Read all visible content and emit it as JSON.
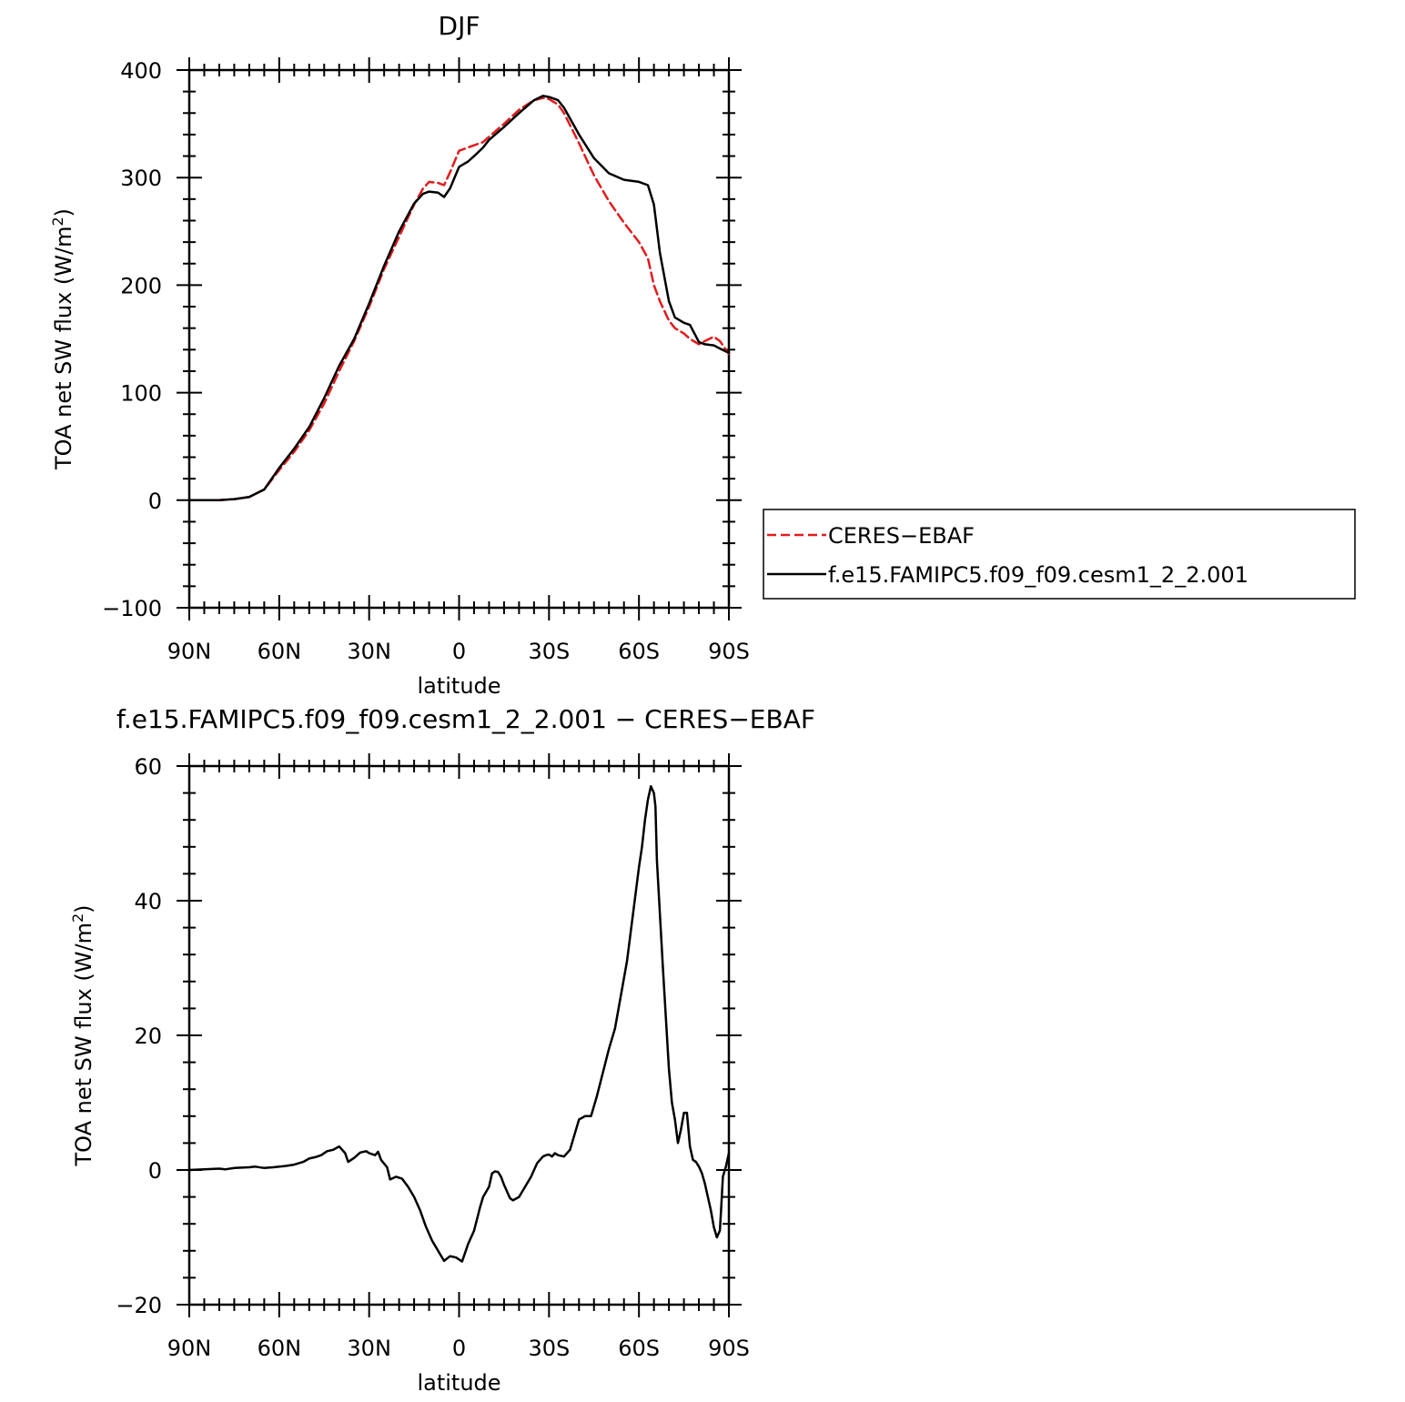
{
  "chart_data": [
    {
      "type": "line",
      "title": "DJF",
      "xlabel": "latitude",
      "ylabel": "TOA net SW flux (W/m2)",
      "xlim": [
        90,
        -90
      ],
      "ylim": [
        -100,
        400
      ],
      "x_ticks": [
        90,
        60,
        30,
        0,
        -30,
        -60,
        -90
      ],
      "x_tick_labels": [
        "90N",
        "60N",
        "30N",
        "0",
        "30S",
        "60S",
        "90S"
      ],
      "y_ticks": [
        -100,
        0,
        100,
        200,
        300,
        400
      ],
      "y_tick_labels": [
        "−100",
        "0",
        "100",
        "200",
        "300",
        "400"
      ],
      "legend": {
        "placement": "right"
      },
      "series": [
        {
          "name": "CERES−EBAF",
          "color": "#e31a1c",
          "dash": "dashed",
          "x": [
            90,
            85,
            80,
            75,
            70,
            65,
            60,
            55,
            50,
            45,
            40,
            35,
            30,
            25,
            20,
            15,
            12,
            10,
            7,
            5,
            3,
            0,
            -3,
            -5,
            -8,
            -10,
            -15,
            -20,
            -25,
            -28,
            -30,
            -33,
            -35,
            -40,
            -45,
            -50,
            -55,
            -60,
            -63,
            -65,
            -67,
            -70,
            -72,
            -75,
            -77,
            -80,
            -82,
            -85,
            -87,
            -90
          ],
          "y": [
            0,
            0,
            0,
            1,
            3,
            10,
            28,
            45,
            65,
            90,
            120,
            148,
            180,
            215,
            245,
            275,
            290,
            296,
            295,
            293,
            305,
            325,
            328,
            330,
            333,
            338,
            350,
            363,
            372,
            374,
            373,
            368,
            360,
            332,
            302,
            278,
            258,
            240,
            225,
            200,
            185,
            167,
            160,
            155,
            150,
            145,
            148,
            152,
            148,
            136
          ]
        },
        {
          "name": "f.e15.FAMIPC5.f09_f09.cesm1_2_2.001",
          "color": "#000000",
          "dash": "solid",
          "x": [
            90,
            85,
            80,
            75,
            70,
            65,
            60,
            55,
            50,
            45,
            40,
            35,
            30,
            25,
            20,
            15,
            12,
            10,
            7,
            5,
            3,
            0,
            -3,
            -5,
            -8,
            -10,
            -15,
            -20,
            -25,
            -28,
            -30,
            -33,
            -35,
            -40,
            -45,
            -50,
            -55,
            -60,
            -63,
            -65,
            -67,
            -70,
            -72,
            -75,
            -77,
            -80,
            -82,
            -85,
            -87,
            -90
          ],
          "y": [
            0,
            0,
            0,
            1,
            3,
            10,
            30,
            48,
            68,
            95,
            125,
            150,
            183,
            218,
            250,
            276,
            285,
            287,
            286,
            282,
            290,
            310,
            315,
            320,
            328,
            335,
            347,
            360,
            372,
            376,
            375,
            372,
            365,
            340,
            318,
            304,
            298,
            296,
            293,
            275,
            230,
            185,
            170,
            165,
            163,
            147,
            145,
            144,
            141,
            137
          ]
        }
      ]
    },
    {
      "type": "line",
      "title": "f.e15.FAMIPC5.f09_f09.cesm1_2_2.001 − CERES−EBAF",
      "xlabel": "latitude",
      "ylabel": "TOA net SW flux (W/m2)",
      "xlim": [
        90,
        -90
      ],
      "ylim": [
        -20,
        60
      ],
      "x_ticks": [
        90,
        60,
        30,
        0,
        -30,
        -60,
        -90
      ],
      "x_tick_labels": [
        "90N",
        "60N",
        "30N",
        "0",
        "30S",
        "60S",
        "90S"
      ],
      "y_ticks": [
        -20,
        0,
        20,
        40,
        60
      ],
      "y_tick_labels": [
        "−20",
        "0",
        "20",
        "40",
        "60"
      ],
      "series": [
        {
          "color": "#000000",
          "dash": "solid",
          "x": [
            90,
            85,
            80,
            78,
            75,
            70,
            68,
            65,
            62,
            58,
            55,
            52,
            50,
            48,
            46,
            44,
            42,
            40,
            38,
            37,
            35,
            33,
            31,
            30,
            28,
            27,
            26,
            24,
            23,
            21,
            19,
            17,
            15,
            13,
            11,
            9,
            7,
            5,
            3,
            1,
            -1,
            -3,
            -5,
            -7,
            -8,
            -10,
            -11,
            -12,
            -13,
            -14,
            -15,
            -17,
            -18,
            -20,
            -22,
            -24,
            -26,
            -28,
            -29,
            -30,
            -31,
            -32,
            -33,
            -35,
            -37,
            -38,
            -40,
            -42,
            -44,
            -46,
            -48,
            -50,
            -52,
            -54,
            -56,
            -58,
            -60,
            -61,
            -62,
            -63,
            -64,
            -65,
            -65.5,
            -66,
            -67,
            -68,
            -70,
            -71,
            -72,
            -73,
            -74,
            -75,
            -76,
            -77,
            -78,
            -79,
            -80,
            -81,
            -82,
            -83,
            -84,
            -85,
            -86,
            -87,
            -87.5,
            -88,
            -89,
            -90
          ],
          "y": [
            0,
            0.1,
            0.2,
            0.1,
            0.3,
            0.4,
            0.5,
            0.3,
            0.4,
            0.6,
            0.8,
            1.2,
            1.7,
            1.9,
            2.2,
            2.8,
            3.0,
            3.5,
            2.5,
            1.2,
            1.8,
            2.6,
            2.8,
            2.5,
            2.2,
            2.7,
            1.5,
            0.4,
            -1.4,
            -1.0,
            -1.3,
            -2.5,
            -4.0,
            -6.0,
            -8.5,
            -10.5,
            -12.0,
            -13.5,
            -12.8,
            -13.0,
            -13.6,
            -11.0,
            -9.0,
            -5.5,
            -4.0,
            -2.5,
            -0.5,
            -0.2,
            -0.3,
            -1.0,
            -2.2,
            -4.2,
            -4.5,
            -4.0,
            -2.5,
            -1.0,
            1.0,
            2.0,
            2.2,
            2.3,
            2.0,
            2.5,
            2.2,
            2.0,
            3.0,
            4.5,
            7.5,
            8.0,
            8.0,
            11.0,
            14.5,
            18.0,
            21.0,
            26.0,
            31.0,
            38.0,
            45.0,
            48.0,
            52.0,
            55.0,
            57.0,
            56.0,
            54.0,
            46.0,
            38.0,
            30.0,
            15.0,
            10.0,
            7.5,
            4.0,
            6.0,
            8.5,
            8.5,
            3.5,
            1.5,
            1.2,
            0.5,
            -0.5,
            -2.0,
            -4.0,
            -6.0,
            -8.5,
            -10.0,
            -9.0,
            -5.0,
            -1.0,
            0.5,
            2.5
          ]
        }
      ]
    }
  ]
}
